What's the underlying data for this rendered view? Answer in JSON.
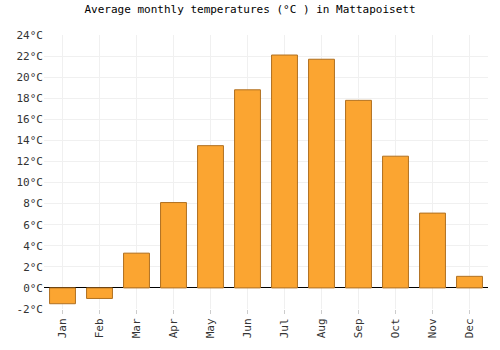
{
  "chart_data": {
    "type": "bar",
    "title": "Average monthly temperatures (°C ) in Mattapoisett",
    "categories": [
      "Jan",
      "Feb",
      "Mar",
      "Apr",
      "May",
      "Jun",
      "Jul",
      "Aug",
      "Sep",
      "Oct",
      "Nov",
      "Dec"
    ],
    "values": [
      -1.5,
      -1.0,
      3.3,
      8.1,
      13.5,
      18.8,
      22.1,
      21.7,
      17.8,
      12.5,
      7.1,
      1.1
    ],
    "color": "#fba531",
    "ylim": [
      -2,
      24
    ],
    "yticks": [
      {
        "value": -2,
        "label": "-2°C"
      },
      {
        "value": 0,
        "label": "0°C"
      },
      {
        "value": 2,
        "label": "2°C"
      },
      {
        "value": 4,
        "label": "4°C"
      },
      {
        "value": 6,
        "label": "6°C"
      },
      {
        "value": 8,
        "label": "8°C"
      },
      {
        "value": 10,
        "label": "10°C"
      },
      {
        "value": 12,
        "label": "12°C"
      },
      {
        "value": 14,
        "label": "14°C"
      },
      {
        "value": 16,
        "label": "16°C"
      },
      {
        "value": 18,
        "label": "18°C"
      },
      {
        "value": 20,
        "label": "20°C"
      },
      {
        "value": 22,
        "label": "22°C"
      },
      {
        "value": 24,
        "label": "24°C"
      }
    ],
    "grid": true
  }
}
